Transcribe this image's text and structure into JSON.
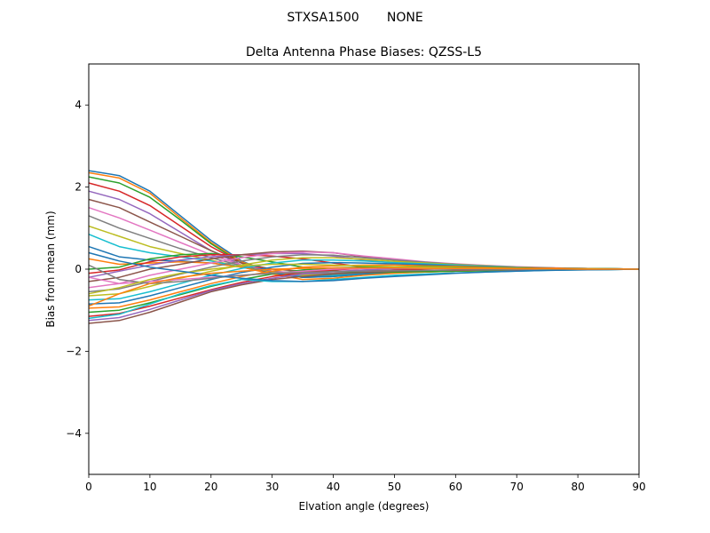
{
  "figure": {
    "suptitle": "STXSA1500       NONE"
  },
  "chart_data": {
    "type": "line",
    "title": "Delta Antenna Phase Biases: QZSS-L5",
    "xlabel": "Elvation angle (degrees)",
    "ylabel": "Bias from mean (mm)",
    "xlim": [
      0,
      90
    ],
    "ylim": [
      -5,
      5
    ],
    "xticks": [
      0,
      10,
      20,
      30,
      40,
      50,
      60,
      70,
      80,
      90
    ],
    "yticks": [
      -4,
      -2,
      0,
      2,
      4
    ],
    "ytick_labels": [
      "−4",
      "−2",
      "0",
      "2",
      "4"
    ],
    "grid": false,
    "x": [
      0,
      5,
      10,
      15,
      20,
      25,
      30,
      35,
      40,
      45,
      50,
      55,
      60,
      65,
      70,
      75,
      80,
      85,
      90
    ],
    "colors": [
      "#1f77b4",
      "#ff7f0e",
      "#2ca02c",
      "#d62728",
      "#9467bd",
      "#8c564b",
      "#e377c2",
      "#7f7f7f",
      "#bcbd22",
      "#17becf"
    ],
    "series": [
      {
        "values": [
          2.4,
          2.28,
          1.9,
          1.3,
          0.7,
          0.2,
          -0.1,
          -0.18,
          -0.15,
          -0.1,
          -0.07,
          -0.05,
          -0.04,
          -0.03,
          -0.02,
          -0.02,
          -0.01,
          -0.01,
          0
        ]
      },
      {
        "values": [
          2.35,
          2.22,
          1.85,
          1.25,
          0.65,
          0.18,
          -0.08,
          -0.15,
          -0.13,
          -0.09,
          -0.06,
          -0.05,
          -0.04,
          -0.03,
          -0.02,
          -0.01,
          -0.01,
          0,
          0
        ]
      },
      {
        "values": [
          2.25,
          2.1,
          1.75,
          1.2,
          0.62,
          0.15,
          -0.1,
          -0.2,
          -0.18,
          -0.12,
          -0.09,
          -0.07,
          -0.05,
          -0.04,
          -0.03,
          -0.02,
          -0.01,
          0,
          0
        ]
      },
      {
        "values": [
          2.1,
          1.9,
          1.55,
          1.05,
          0.55,
          0.15,
          -0.05,
          -0.12,
          -0.1,
          -0.07,
          -0.05,
          -0.04,
          -0.03,
          -0.02,
          -0.02,
          -0.01,
          -0.01,
          0,
          0
        ]
      },
      {
        "values": [
          1.9,
          1.7,
          1.35,
          0.9,
          0.45,
          0.1,
          -0.08,
          -0.15,
          -0.12,
          -0.08,
          -0.06,
          -0.05,
          -0.04,
          -0.03,
          -0.02,
          -0.01,
          -0.01,
          0,
          0
        ]
      },
      {
        "values": [
          1.7,
          1.5,
          1.15,
          0.8,
          0.45,
          0.15,
          0.0,
          -0.05,
          -0.05,
          -0.04,
          -0.03,
          -0.03,
          -0.02,
          -0.02,
          -0.01,
          -0.01,
          0,
          0,
          0
        ]
      },
      {
        "values": [
          1.5,
          1.25,
          0.95,
          0.65,
          0.35,
          0.1,
          -0.05,
          -0.1,
          -0.1,
          -0.07,
          -0.05,
          -0.04,
          -0.03,
          -0.02,
          -0.02,
          -0.01,
          -0.01,
          0,
          0
        ]
      },
      {
        "values": [
          1.3,
          1.0,
          0.75,
          0.5,
          0.28,
          0.08,
          -0.06,
          -0.12,
          -0.1,
          -0.07,
          -0.05,
          -0.04,
          -0.03,
          -0.02,
          -0.02,
          -0.01,
          -0.01,
          0,
          0
        ]
      },
      {
        "values": [
          1.05,
          0.8,
          0.55,
          0.38,
          0.22,
          0.05,
          -0.08,
          -0.15,
          -0.13,
          -0.09,
          -0.06,
          -0.05,
          -0.04,
          -0.03,
          -0.02,
          -0.02,
          -0.01,
          0,
          0
        ]
      },
      {
        "values": [
          0.85,
          0.55,
          0.4,
          0.3,
          0.2,
          0.05,
          -0.1,
          -0.18,
          -0.15,
          -0.1,
          -0.07,
          -0.05,
          -0.04,
          -0.03,
          -0.02,
          -0.01,
          -0.01,
          0,
          0
        ]
      },
      {
        "values": [
          0.55,
          0.3,
          0.22,
          0.2,
          0.15,
          0.05,
          -0.1,
          -0.2,
          -0.18,
          -0.12,
          -0.08,
          -0.06,
          -0.04,
          -0.03,
          -0.02,
          -0.02,
          -0.01,
          0,
          0
        ]
      },
      {
        "values": [
          0.25,
          0.12,
          0.15,
          0.18,
          0.15,
          0.05,
          -0.12,
          -0.25,
          -0.22,
          -0.15,
          -0.1,
          -0.07,
          -0.05,
          -0.04,
          -0.03,
          -0.02,
          -0.01,
          0,
          0
        ]
      },
      {
        "values": [
          0.0,
          0.05,
          0.25,
          0.35,
          0.38,
          0.3,
          0.18,
          0.05,
          -0.05,
          -0.08,
          -0.07,
          -0.06,
          -0.05,
          -0.04,
          -0.03,
          -0.02,
          -0.01,
          0,
          0
        ]
      },
      {
        "values": [
          -0.1,
          -0.02,
          0.18,
          0.3,
          0.35,
          0.35,
          0.32,
          0.25,
          0.15,
          0.05,
          0.0,
          -0.02,
          -0.03,
          -0.02,
          -0.02,
          -0.01,
          0,
          0,
          0
        ]
      },
      {
        "values": [
          -0.2,
          -0.05,
          0.1,
          0.22,
          0.3,
          0.35,
          0.38,
          0.38,
          0.32,
          0.22,
          0.15,
          0.1,
          0.06,
          0.04,
          0.03,
          0.02,
          0.01,
          0,
          0
        ]
      },
      {
        "values": [
          -0.3,
          -0.2,
          0.0,
          0.12,
          0.25,
          0.35,
          0.42,
          0.44,
          0.4,
          0.3,
          0.22,
          0.16,
          0.12,
          0.08,
          0.05,
          0.03,
          0.02,
          0.01,
          0
        ]
      },
      {
        "values": [
          -0.45,
          -0.35,
          -0.15,
          0.0,
          0.15,
          0.28,
          0.38,
          0.42,
          0.4,
          0.32,
          0.25,
          0.18,
          0.13,
          0.09,
          0.06,
          0.04,
          0.02,
          0.01,
          0
        ]
      },
      {
        "values": [
          -0.55,
          -0.48,
          -0.3,
          -0.12,
          0.05,
          0.2,
          0.3,
          0.35,
          0.34,
          0.28,
          0.22,
          0.17,
          0.12,
          0.08,
          0.05,
          0.03,
          0.02,
          0.01,
          0
        ]
      },
      {
        "values": [
          -0.65,
          -0.6,
          -0.42,
          -0.22,
          -0.05,
          0.1,
          0.22,
          0.28,
          0.28,
          0.24,
          0.19,
          0.15,
          0.11,
          0.08,
          0.05,
          0.03,
          0.02,
          0.01,
          0
        ]
      },
      {
        "values": [
          -0.75,
          -0.72,
          -0.55,
          -0.35,
          -0.15,
          0.02,
          0.15,
          0.22,
          0.22,
          0.2,
          0.16,
          0.13,
          0.1,
          0.07,
          0.05,
          0.03,
          0.02,
          0.01,
          0
        ]
      },
      {
        "values": [
          -0.85,
          -0.82,
          -0.65,
          -0.45,
          -0.25,
          -0.08,
          0.05,
          0.14,
          0.16,
          0.15,
          0.13,
          0.11,
          0.08,
          0.06,
          0.04,
          0.03,
          0.02,
          0.01,
          0
        ]
      },
      {
        "values": [
          -0.95,
          -0.92,
          -0.75,
          -0.55,
          -0.35,
          -0.18,
          -0.05,
          0.05,
          0.08,
          0.1,
          0.1,
          0.08,
          0.07,
          0.05,
          0.04,
          0.03,
          0.02,
          0.01,
          0
        ]
      },
      {
        "values": [
          -1.05,
          -1.0,
          -0.82,
          -0.62,
          -0.42,
          -0.25,
          -0.12,
          -0.02,
          0.03,
          0.05,
          0.06,
          0.06,
          0.05,
          0.04,
          0.03,
          0.02,
          0.01,
          0.01,
          0
        ]
      },
      {
        "values": [
          -1.15,
          -1.08,
          -0.9,
          -0.7,
          -0.5,
          -0.32,
          -0.18,
          -0.08,
          -0.02,
          0.02,
          0.04,
          0.04,
          0.04,
          0.03,
          0.02,
          0.02,
          0.01,
          0,
          0
        ]
      },
      {
        "values": [
          -1.25,
          -1.18,
          -0.98,
          -0.75,
          -0.52,
          -0.35,
          -0.22,
          -0.12,
          -0.06,
          -0.02,
          0.01,
          0.02,
          0.02,
          0.02,
          0.02,
          0.01,
          0.01,
          0,
          0
        ]
      },
      {
        "values": [
          -1.32,
          -1.25,
          -1.05,
          -0.8,
          -0.55,
          -0.38,
          -0.25,
          -0.18,
          -0.12,
          -0.08,
          -0.05,
          -0.03,
          -0.02,
          -0.01,
          -0.01,
          0,
          0,
          0,
          0
        ]
      },
      {
        "values": [
          -0.2,
          -0.35,
          -0.3,
          -0.25,
          -0.2,
          -0.15,
          -0.1,
          -0.05,
          0.0,
          0.02,
          0.03,
          0.03,
          0.02,
          0.02,
          0.01,
          0.01,
          0,
          0,
          0
        ]
      },
      {
        "values": [
          0.1,
          -0.25,
          -0.35,
          -0.3,
          -0.22,
          -0.15,
          -0.1,
          -0.08,
          -0.06,
          -0.05,
          -0.04,
          -0.03,
          -0.02,
          -0.02,
          -0.01,
          -0.01,
          0,
          0,
          0
        ]
      },
      {
        "values": [
          -0.6,
          -0.45,
          -0.25,
          -0.1,
          0.0,
          0.08,
          0.12,
          0.12,
          0.1,
          0.08,
          0.06,
          0.05,
          0.04,
          0.03,
          0.02,
          0.01,
          0.01,
          0,
          0
        ]
      },
      {
        "values": [
          -1.2,
          -1.1,
          -0.85,
          -0.6,
          -0.4,
          -0.25,
          -0.3,
          -0.3,
          -0.25,
          -0.2,
          -0.15,
          -0.12,
          -0.09,
          -0.07,
          -0.05,
          -0.03,
          -0.02,
          -0.01,
          0
        ]
      },
      {
        "values": [
          0.4,
          0.2,
          0.05,
          -0.05,
          -0.15,
          -0.22,
          -0.28,
          -0.3,
          -0.28,
          -0.22,
          -0.18,
          -0.14,
          -0.1,
          -0.07,
          -0.05,
          -0.03,
          -0.02,
          -0.01,
          0
        ]
      },
      {
        "values": [
          -0.9,
          -0.6,
          -0.35,
          -0.2,
          -0.1,
          -0.05,
          0.0,
          0.02,
          0.03,
          0.03,
          0.03,
          0.02,
          0.02,
          0.02,
          0.01,
          0.01,
          0,
          0,
          0
        ]
      }
    ]
  }
}
